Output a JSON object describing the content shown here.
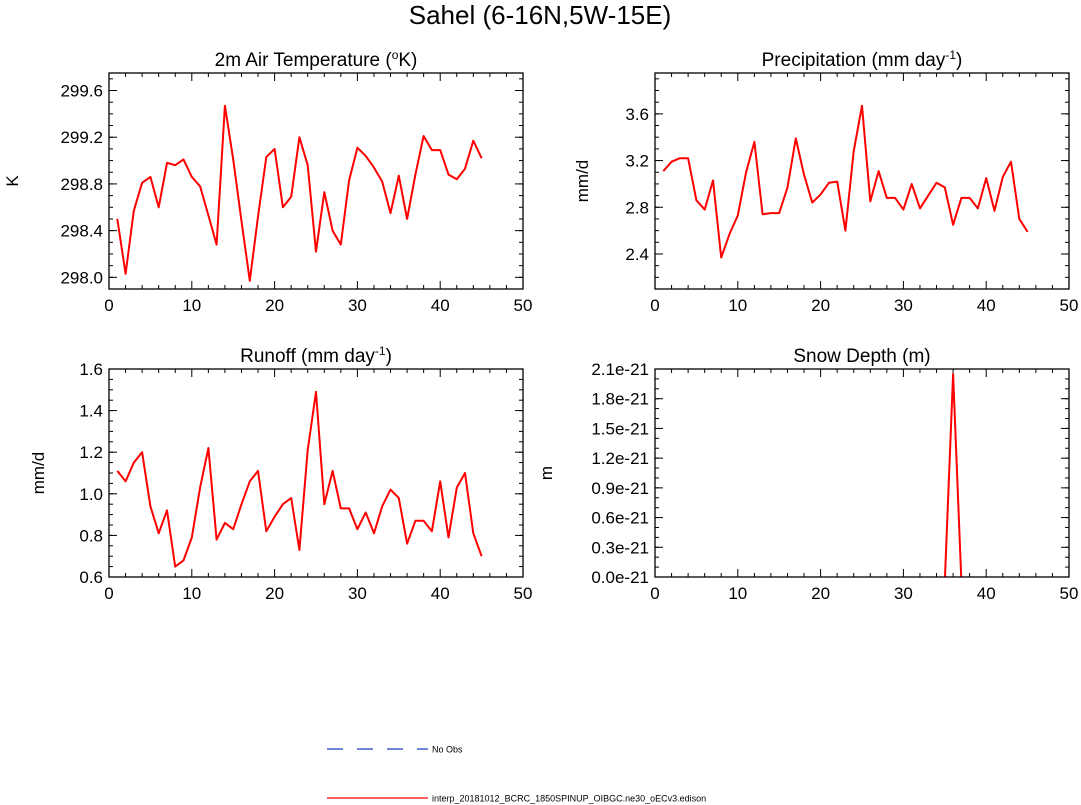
{
  "figure_title": "Sahel (6-16N,5W-15E)",
  "legend": [
    {
      "label": "No Obs",
      "color": "#1f3fbf",
      "style": "dashed"
    },
    {
      "label": "interp_20181012_BCRC_1850SPINUP_OIBGC.ne30_oECv3.edison",
      "color": "#ff0000",
      "style": "solid"
    }
  ],
  "chart_data": [
    {
      "type": "line",
      "title": "2m Air Temperature (oK)",
      "title_main": "2m Air Temperature (",
      "title_sup": "o",
      "title_tail": "K)",
      "ylabel": "K",
      "xlim": [
        0,
        50
      ],
      "ylim": [
        297.9,
        299.75
      ],
      "xticks": [
        0,
        10,
        20,
        30,
        40,
        50
      ],
      "xtick_labels": [
        "0",
        "10",
        "20",
        "30",
        "40",
        "50"
      ],
      "yticks": [
        298.0,
        298.4,
        298.8,
        299.2,
        299.6
      ],
      "ytick_labels": [
        "298.0",
        "298.4",
        "298.8",
        "299.2",
        "299.6"
      ],
      "yminor": 0.1,
      "series": [
        {
          "color": "#ff0000",
          "x": [
            1,
            2,
            3,
            4,
            5,
            6,
            7,
            8,
            9,
            10,
            11,
            12,
            13,
            14,
            15,
            16,
            17,
            18,
            19,
            20,
            21,
            22,
            23,
            24,
            25,
            26,
            27,
            28,
            29,
            30,
            31,
            32,
            33,
            34,
            35,
            36,
            37,
            38,
            39,
            40,
            41,
            42,
            43,
            44,
            45
          ],
          "y": [
            298.5,
            298.03,
            298.57,
            298.81,
            298.86,
            298.6,
            298.98,
            298.96,
            299.01,
            298.86,
            298.78,
            298.53,
            298.28,
            299.47,
            299.01,
            298.48,
            297.97,
            298.52,
            299.03,
            299.1,
            298.6,
            298.69,
            299.2,
            298.96,
            298.22,
            298.73,
            298.4,
            298.28,
            298.83,
            299.11,
            299.04,
            298.94,
            298.82,
            298.55,
            298.87,
            298.5,
            298.88,
            299.21,
            299.09,
            299.09,
            298.88,
            298.84,
            298.93,
            299.17,
            299.02
          ]
        }
      ]
    },
    {
      "type": "line",
      "title": "Precipitation (mm day-1)",
      "title_main": "Precipitation (mm day",
      "title_sup": "-1",
      "title_tail": ")",
      "ylabel": "mm/d",
      "xlim": [
        0,
        50
      ],
      "ylim": [
        2.1,
        3.95
      ],
      "xticks": [
        0,
        10,
        20,
        30,
        40,
        50
      ],
      "xtick_labels": [
        "0",
        "10",
        "20",
        "30",
        "40",
        "50"
      ],
      "yticks": [
        2.4,
        2.8,
        3.2,
        3.6
      ],
      "ytick_labels": [
        "2.4",
        "2.8",
        "3.2",
        "3.6"
      ],
      "yminor": 0.1,
      "series": [
        {
          "color": "#ff0000",
          "x": [
            1,
            2,
            3,
            4,
            5,
            6,
            7,
            8,
            9,
            10,
            11,
            12,
            13,
            14,
            15,
            16,
            17,
            18,
            19,
            20,
            21,
            22,
            23,
            24,
            25,
            26,
            27,
            28,
            29,
            30,
            31,
            32,
            33,
            34,
            35,
            36,
            37,
            38,
            39,
            40,
            41,
            42,
            43,
            44,
            45
          ],
          "y": [
            3.11,
            3.19,
            3.22,
            3.22,
            2.86,
            2.78,
            3.03,
            2.37,
            2.57,
            2.73,
            3.1,
            3.36,
            2.74,
            2.75,
            2.75,
            2.97,
            3.39,
            3.08,
            2.84,
            2.91,
            3.01,
            3.02,
            2.6,
            3.28,
            3.67,
            2.85,
            3.11,
            2.88,
            2.88,
            2.78,
            3.0,
            2.79,
            2.9,
            3.01,
            2.97,
            2.65,
            2.88,
            2.88,
            2.79,
            3.05,
            2.77,
            3.06,
            3.19,
            2.7,
            2.59
          ]
        }
      ]
    },
    {
      "type": "line",
      "title": "Runoff (mm day-1)",
      "title_main": "Runoff (mm day",
      "title_sup": "-1",
      "title_tail": ")",
      "ylabel": "mm/d",
      "xlim": [
        0,
        50
      ],
      "ylim": [
        0.6,
        1.6
      ],
      "xticks": [
        0,
        10,
        20,
        30,
        40,
        50
      ],
      "xtick_labels": [
        "0",
        "10",
        "20",
        "30",
        "40",
        "50"
      ],
      "yticks": [
        0.6,
        0.8,
        1.0,
        1.2,
        1.4,
        1.6
      ],
      "ytick_labels": [
        "0.6",
        "0.8",
        "1.0",
        "1.2",
        "1.4",
        "1.6"
      ],
      "yminor": 0.05,
      "series": [
        {
          "color": "#ff0000",
          "x": [
            1,
            2,
            3,
            4,
            5,
            6,
            7,
            8,
            9,
            10,
            11,
            12,
            13,
            14,
            15,
            16,
            17,
            18,
            19,
            20,
            21,
            22,
            23,
            24,
            25,
            26,
            27,
            28,
            29,
            30,
            31,
            32,
            33,
            34,
            35,
            36,
            37,
            38,
            39,
            40,
            41,
            42,
            43,
            44,
            45
          ],
          "y": [
            1.11,
            1.06,
            1.15,
            1.2,
            0.94,
            0.81,
            0.92,
            0.65,
            0.68,
            0.79,
            1.03,
            1.22,
            0.78,
            0.86,
            0.83,
            0.95,
            1.06,
            1.11,
            0.82,
            0.89,
            0.95,
            0.98,
            0.73,
            1.21,
            1.49,
            0.95,
            1.11,
            0.93,
            0.93,
            0.83,
            0.91,
            0.81,
            0.94,
            1.02,
            0.98,
            0.76,
            0.87,
            0.87,
            0.82,
            1.06,
            0.79,
            1.03,
            1.1,
            0.81,
            0.7
          ]
        }
      ]
    },
    {
      "type": "line",
      "title": "Snow Depth (m)",
      "title_main": "Snow Depth (m)",
      "title_sup": "",
      "title_tail": "",
      "ylabel": "m",
      "xlim": [
        0,
        50
      ],
      "ylim": [
        0,
        2.1
      ],
      "xticks": [
        0,
        10,
        20,
        30,
        40,
        50
      ],
      "xtick_labels": [
        "0",
        "10",
        "20",
        "30",
        "40",
        "50"
      ],
      "yticks": [
        0,
        0.3,
        0.6,
        0.9,
        1.2,
        1.5,
        1.8,
        2.1
      ],
      "ytick_labels": [
        "0.0e-21",
        "0.3e-21",
        "0.6e-21",
        "0.9e-21",
        "1.2e-21",
        "1.5e-21",
        "1.8e-21",
        "2.1e-21"
      ],
      "yminor": 0.1,
      "y_unit_scale": "1e-21",
      "series": [
        {
          "color": "#ff0000",
          "x": [
            35,
            36,
            37
          ],
          "y": [
            -0.05,
            2.05,
            -0.05
          ]
        }
      ]
    }
  ]
}
